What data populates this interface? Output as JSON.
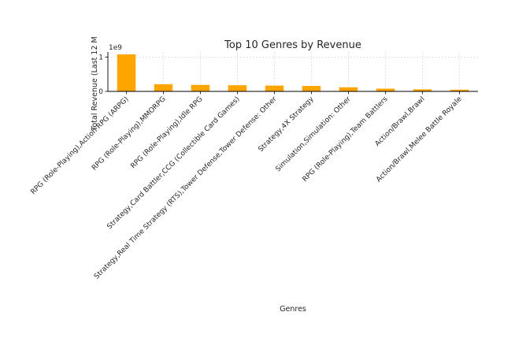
{
  "chart_data": {
    "type": "bar",
    "title": "Top 10 Genres by Revenue",
    "xlabel": "Genres",
    "ylabel": "Total Revenue (Last 12 M",
    "y_offset_label": "1e9",
    "ylim": [
      0,
      1.15
    ],
    "yticks": [
      0,
      1
    ],
    "grid": true,
    "bar_color": "#FFA500",
    "categories": [
      "RPG (Role-Playing),Action RPG (ARPG)",
      "RPG (Role-Playing),MMORPG",
      "RPG (Role-Playing),Idle RPG",
      "Strategy,Card Battler,CCG (Collectible Card Games)",
      "Strategy,Real Time Strategy (RTS),Tower Defense,Tower Defense: Other",
      "Strategy,4X Strategy",
      "Simulation,Simulation: Other",
      "RPG (Role-Playing),Team Battlers",
      "Action/Brawl,Brawl",
      "Action/Brawl,Melee Battle Royale"
    ],
    "values": [
      1.08,
      0.21,
      0.19,
      0.18,
      0.17,
      0.16,
      0.12,
      0.08,
      0.06,
      0.05
    ]
  }
}
